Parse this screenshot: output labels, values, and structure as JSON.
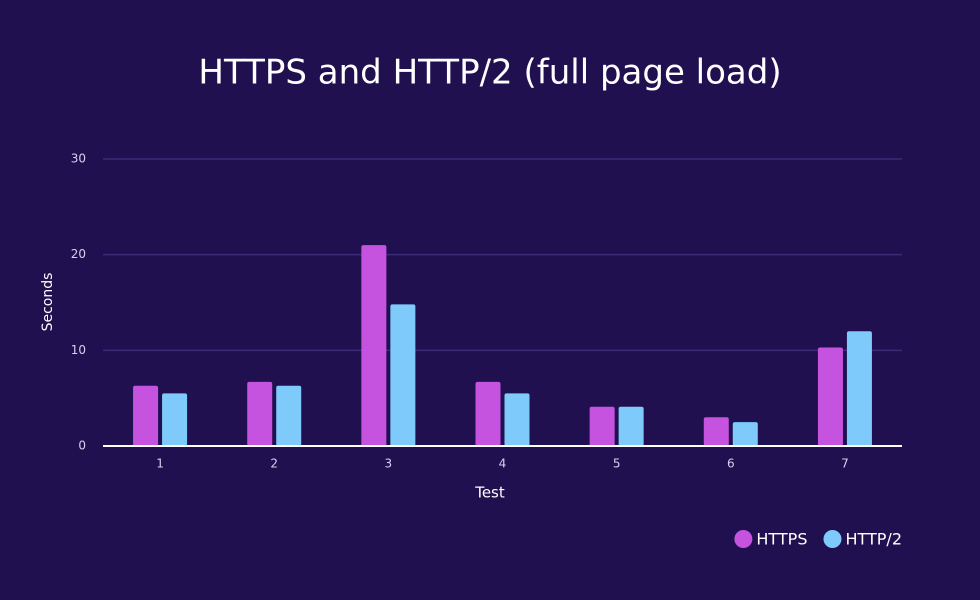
{
  "chart_data": {
    "type": "bar",
    "title": "HTTPS and HTTP/2 (full page load)",
    "x_label": "Test",
    "y_label": "Seconds",
    "categories": [
      "1",
      "2",
      "3",
      "4",
      "5",
      "6",
      "7"
    ],
    "series": [
      {
        "name": "HTTPS",
        "color": "#c653e0",
        "values": [
          6.3,
          6.7,
          21.0,
          6.7,
          4.1,
          3.0,
          10.3
        ]
      },
      {
        "name": "HTTP/2",
        "color": "#7ecbfb",
        "values": [
          5.5,
          6.3,
          14.8,
          5.5,
          4.1,
          2.5,
          12.0
        ]
      }
    ],
    "ylim": [
      0,
      30
    ],
    "yticks": [
      0,
      10,
      20,
      30
    ],
    "grid": true,
    "legend": "bottom-right"
  }
}
